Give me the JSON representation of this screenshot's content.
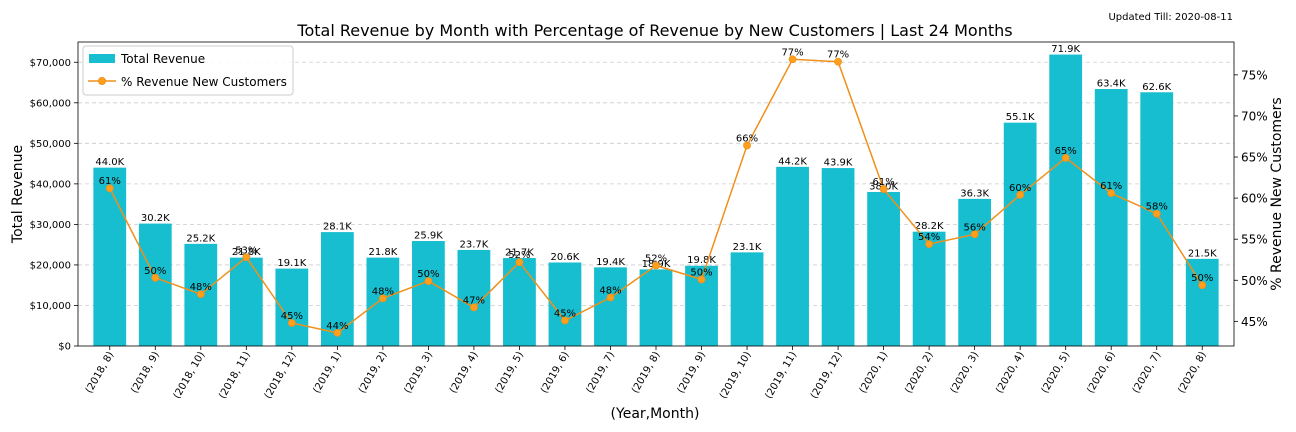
{
  "updated_note": "Updated Till: 2020-08-11",
  "colors": {
    "bar": "#17becf",
    "line": "#ff9f1c",
    "line_stroke": "#f0901a",
    "grid": "#cccccc"
  },
  "chart_data": {
    "type": "bar",
    "title": "Total Revenue by Month with Percentage of Revenue by New Customers | Last 24 Months",
    "xlabel": "(Year,Month)",
    "ylabel": "Total Revenue",
    "y2label": "% Revenue New Customers",
    "grid": true,
    "legend_position": "top-left",
    "ylim": [
      0,
      75000
    ],
    "y2lim": [
      42,
      79
    ],
    "yticks": [
      "$0",
      "$10,000",
      "$20,000",
      "$30,000",
      "$40,000",
      "$50,000",
      "$60,000",
      "$70,000"
    ],
    "ytick_values": [
      0,
      10000,
      20000,
      30000,
      40000,
      50000,
      60000,
      70000
    ],
    "y2ticks": [
      "45%",
      "50%",
      "55%",
      "60%",
      "65%",
      "70%",
      "75%"
    ],
    "y2tick_values": [
      45,
      50,
      55,
      60,
      65,
      70,
      75
    ],
    "categories": [
      "(2018, 8)",
      "(2018, 9)",
      "(2018, 10)",
      "(2018, 11)",
      "(2018, 12)",
      "(2019, 1)",
      "(2019, 2)",
      "(2019, 3)",
      "(2019, 4)",
      "(2019, 5)",
      "(2019, 6)",
      "(2019, 7)",
      "(2019, 8)",
      "(2019, 9)",
      "(2019, 10)",
      "(2019, 11)",
      "(2019, 12)",
      "(2020, 1)",
      "(2020, 2)",
      "(2020, 3)",
      "(2020, 4)",
      "(2020, 5)",
      "(2020, 6)",
      "(2020, 7)",
      "(2020, 8)"
    ],
    "series": [
      {
        "name": "Total Revenue",
        "type": "bar",
        "values": [
          44000,
          30200,
          25200,
          21800,
          19100,
          28100,
          21800,
          25900,
          23700,
          21700,
          20600,
          19400,
          18900,
          19800,
          23100,
          44200,
          43900,
          38000,
          28200,
          36300,
          55100,
          71900,
          63400,
          62600,
          21500
        ],
        "labels": [
          "44.0K",
          "30.2K",
          "25.2K",
          "21.8K",
          "19.1K",
          "28.1K",
          "21.8K",
          "25.9K",
          "23.7K",
          "21.7K",
          "20.6K",
          "19.4K",
          "18.9K",
          "19.8K",
          "23.1K",
          "44.2K",
          "43.9K",
          "38.0K",
          "28.2K",
          "36.3K",
          "55.1K",
          "71.9K",
          "63.4K",
          "62.6K",
          "21.5K"
        ]
      },
      {
        "name": "% Revenue New Customers",
        "type": "line",
        "values": [
          61,
          50,
          48,
          53,
          45,
          44,
          48,
          50,
          47,
          52,
          45,
          48,
          52,
          50,
          66,
          77,
          77,
          61,
          54,
          56,
          60,
          65,
          61,
          58,
          50
        ],
        "exact": [
          61.2,
          50.3,
          48.3,
          52.8,
          44.8,
          43.6,
          47.8,
          49.9,
          46.7,
          52.2,
          45.1,
          47.9,
          51.8,
          50.1,
          66.4,
          76.9,
          76.6,
          61.1,
          54.4,
          55.6,
          60.4,
          64.9,
          60.6,
          58.1,
          49.4
        ],
        "labels": [
          "61%",
          "50%",
          "48%",
          "53%",
          "45%",
          "44%",
          "48%",
          "50%",
          "47%",
          "52%",
          "45%",
          "48%",
          "52%",
          "50%",
          "66%",
          "77%",
          "77%",
          "61%",
          "54%",
          "56%",
          "60%",
          "65%",
          "61%",
          "58%",
          "50%"
        ]
      }
    ]
  }
}
